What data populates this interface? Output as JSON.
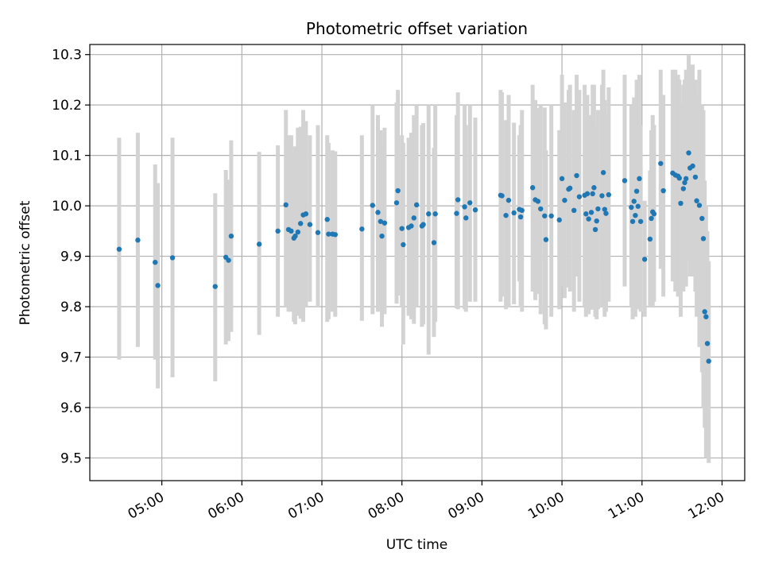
{
  "chart_data": {
    "type": "scatter",
    "title": "Photometric offset variation",
    "xlabel": "UTC time",
    "ylabel": "Photometric offset",
    "grid": true,
    "x_ticks": [
      "05:00",
      "06:00",
      "07:00",
      "08:00",
      "09:00",
      "10:00",
      "11:00",
      "12:00"
    ],
    "xlim": [
      "04:06",
      "12:17"
    ],
    "y_ticks": [
      "9.5",
      "9.6",
      "9.7",
      "9.8",
      "9.9",
      "10.0",
      "10.1",
      "10.2",
      "10.3"
    ],
    "ylim": [
      9.455,
      10.32
    ],
    "colors": {
      "marker": "#1f77b4",
      "errorbar": "#d3d3d3",
      "grid": "#b0b0b0"
    },
    "series": [
      {
        "x": [
          "04:28",
          "04:42",
          "04:55",
          "04:57",
          "05:08",
          "05:40",
          "05:48",
          "05:50",
          "05:52",
          "06:13",
          "06:27",
          "06:33",
          "06:35",
          "06:37",
          "06:39",
          "06:40",
          "06:42",
          "06:44",
          "06:46",
          "06:48",
          "06:51",
          "06:57",
          "07:04",
          "07:05",
          "07:08",
          "07:10",
          "07:30",
          "07:38",
          "07:42",
          "07:44",
          "07:45",
          "07:47",
          "07:56",
          "07:57",
          "08:00",
          "08:01",
          "08:05",
          "08:07",
          "08:09",
          "08:11",
          "08:15",
          "08:16",
          "08:20",
          "08:24",
          "08:25",
          "08:41",
          "08:42",
          "08:47",
          "08:48",
          "08:51",
          "08:55",
          "09:14",
          "09:15",
          "09:18",
          "09:20",
          "09:24",
          "09:28",
          "09:29",
          "09:30",
          "09:38",
          "09:40",
          "09:42",
          "09:44",
          "09:47",
          "09:48",
          "09:52",
          "09:58",
          "10:00",
          "10:02",
          "10:05",
          "10:06",
          "10:09",
          "10:11",
          "10:13",
          "10:17",
          "10:18",
          "10:19",
          "10:20",
          "10:22",
          "10:23",
          "10:24",
          "10:25",
          "10:26",
          "10:27",
          "10:30",
          "10:31",
          "10:32",
          "10:33",
          "10:35",
          "10:47",
          "10:52",
          "10:53",
          "10:54",
          "10:55",
          "10:56",
          "10:57",
          "10:58",
          "10:59",
          "11:02",
          "11:06",
          "11:07",
          "11:08",
          "11:09",
          "11:14",
          "11:16",
          "11:23",
          "11:25",
          "11:27",
          "11:28",
          "11:29",
          "11:31",
          "11:32",
          "11:33",
          "11:35",
          "11:36",
          "11:38",
          "11:40",
          "11:41",
          "11:43",
          "11:45",
          "11:46",
          "11:47",
          "11:48",
          "11:49",
          "11:50"
        ],
        "y": [
          9.914,
          9.932,
          9.888,
          9.842,
          9.897,
          9.84,
          9.898,
          9.892,
          9.94,
          9.924,
          9.95,
          10.002,
          9.953,
          9.95,
          9.936,
          9.94,
          9.948,
          9.965,
          9.982,
          9.984,
          9.963,
          9.947,
          9.973,
          9.944,
          9.944,
          9.943,
          9.954,
          10.001,
          9.987,
          9.969,
          9.94,
          9.966,
          10.006,
          10.03,
          9.955,
          9.923,
          9.957,
          9.96,
          9.976,
          10.002,
          9.96,
          9.963,
          9.984,
          9.927,
          9.984,
          9.985,
          10.012,
          9.998,
          9.976,
          10.006,
          9.992,
          10.021,
          10.02,
          9.981,
          10.011,
          9.986,
          9.993,
          9.978,
          9.991,
          10.036,
          10.012,
          10.009,
          9.994,
          9.98,
          9.933,
          9.98,
          9.972,
          10.054,
          10.011,
          10.033,
          10.035,
          9.991,
          10.06,
          10.018,
          10.021,
          9.984,
          10.024,
          9.974,
          9.987,
          10.024,
          10.036,
          9.953,
          9.97,
          9.994,
          10.02,
          10.066,
          9.993,
          9.985,
          10.022,
          10.05,
          9.997,
          9.969,
          10.009,
          9.981,
          10.029,
          9.999,
          10.054,
          9.969,
          9.894,
          9.934,
          9.975,
          9.988,
          9.984,
          10.084,
          10.03,
          10.065,
          10.061,
          10.059,
          10.055,
          10.005,
          10.034,
          10.046,
          10.054,
          10.105,
          10.075,
          10.079,
          10.057,
          10.01,
          10.001,
          9.975,
          9.935,
          9.79,
          9.78,
          9.727,
          9.692
        ],
        "err_low": [
          9.695,
          9.72,
          9.695,
          9.638,
          9.66,
          9.652,
          9.725,
          9.732,
          9.75,
          9.744,
          9.78,
          9.8,
          9.79,
          9.79,
          9.77,
          9.765,
          9.782,
          9.776,
          9.77,
          9.8,
          9.81,
          9.8,
          9.77,
          9.775,
          9.79,
          9.78,
          9.772,
          9.785,
          9.79,
          9.8,
          9.76,
          9.785,
          9.806,
          9.822,
          9.8,
          9.725,
          9.782,
          9.775,
          9.766,
          9.8,
          9.76,
          9.765,
          9.705,
          9.74,
          9.77,
          9.797,
          9.795,
          9.795,
          9.79,
          9.81,
          9.81,
          9.81,
          9.82,
          9.795,
          9.8,
          9.805,
          9.85,
          9.8,
          9.79,
          9.83,
          9.813,
          9.825,
          9.785,
          9.765,
          9.755,
          9.78,
          9.795,
          9.84,
          9.817,
          9.838,
          9.83,
          9.79,
          9.86,
          9.81,
          9.8,
          9.78,
          9.83,
          9.785,
          9.794,
          9.803,
          9.85,
          9.78,
          9.775,
          9.795,
          9.8,
          9.86,
          9.78,
          9.79,
          9.81,
          9.84,
          9.8,
          9.775,
          9.8,
          9.78,
          9.82,
          9.795,
          9.85,
          9.79,
          9.78,
          9.8,
          9.81,
          9.8,
          9.81,
          9.875,
          9.82,
          9.85,
          9.83,
          9.82,
          9.84,
          9.78,
          9.83,
          9.84,
          9.84,
          9.89,
          9.86,
          9.86,
          9.83,
          9.78,
          9.72,
          9.67,
          9.6,
          9.56,
          9.5,
          9.51,
          9.49
        ],
        "err_high": [
          10.135,
          10.145,
          10.082,
          10.045,
          10.135,
          10.025,
          10.071,
          10.052,
          10.13,
          10.107,
          10.12,
          10.19,
          10.14,
          10.14,
          10.1,
          10.118,
          10.155,
          10.157,
          10.19,
          10.168,
          10.14,
          10.16,
          10.14,
          10.125,
          10.11,
          10.108,
          10.14,
          10.2,
          10.18,
          10.15,
          10.12,
          10.155,
          10.205,
          10.23,
          10.14,
          10.125,
          10.135,
          10.145,
          10.18,
          10.2,
          10.16,
          10.164,
          10.2,
          10.115,
          10.2,
          10.18,
          10.225,
          10.2,
          10.16,
          10.2,
          10.175,
          10.23,
          10.225,
          10.17,
          10.22,
          10.165,
          10.14,
          10.16,
          10.19,
          10.24,
          10.21,
          10.194,
          10.2,
          10.195,
          10.11,
          10.2,
          10.15,
          10.26,
          10.205,
          10.23,
          10.24,
          10.19,
          10.26,
          10.23,
          10.24,
          10.185,
          10.22,
          10.16,
          10.18,
          10.24,
          10.24,
          10.13,
          10.16,
          10.19,
          10.24,
          10.27,
          10.21,
          10.18,
          10.235,
          10.26,
          10.2,
          10.16,
          10.215,
          10.16,
          10.25,
          10.2,
          10.26,
          10.16,
          10.01,
          10.07,
          10.15,
          10.18,
          10.16,
          10.27,
          10.22,
          10.27,
          10.27,
          10.26,
          10.25,
          10.2,
          10.24,
          10.25,
          10.27,
          10.3,
          10.28,
          10.28,
          10.25,
          10.22,
          10.27,
          10.2,
          10.19,
          10.05,
          10.0,
          9.95,
          9.89
        ]
      }
    ]
  }
}
